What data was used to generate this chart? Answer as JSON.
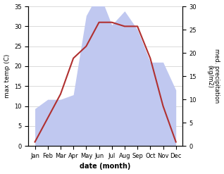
{
  "months": [
    "Jan",
    "Feb",
    "Mar",
    "Apr",
    "May",
    "Jun",
    "Jul",
    "Aug",
    "Sep",
    "Oct",
    "Nov",
    "Dec"
  ],
  "temperature": [
    1,
    7,
    13,
    22,
    25,
    31,
    31,
    30,
    30,
    22,
    10,
    1
  ],
  "precipitation": [
    8,
    10,
    10,
    11,
    28,
    33,
    26,
    29,
    25,
    18,
    18,
    12
  ],
  "temp_color": "#b03030",
  "precip_color": "#c0c8f0",
  "ylabel_left": "max temp (C)",
  "ylabel_right": "med. precipitation\n(kg/m2)",
  "xlabel": "date (month)",
  "ylim_left": [
    0,
    35
  ],
  "ylim_right": [
    0,
    30
  ],
  "yticks_left": [
    0,
    5,
    10,
    15,
    20,
    25,
    30,
    35
  ],
  "yticks_right": [
    0,
    5,
    10,
    15,
    20,
    25,
    30
  ],
  "background_color": "#ffffff"
}
